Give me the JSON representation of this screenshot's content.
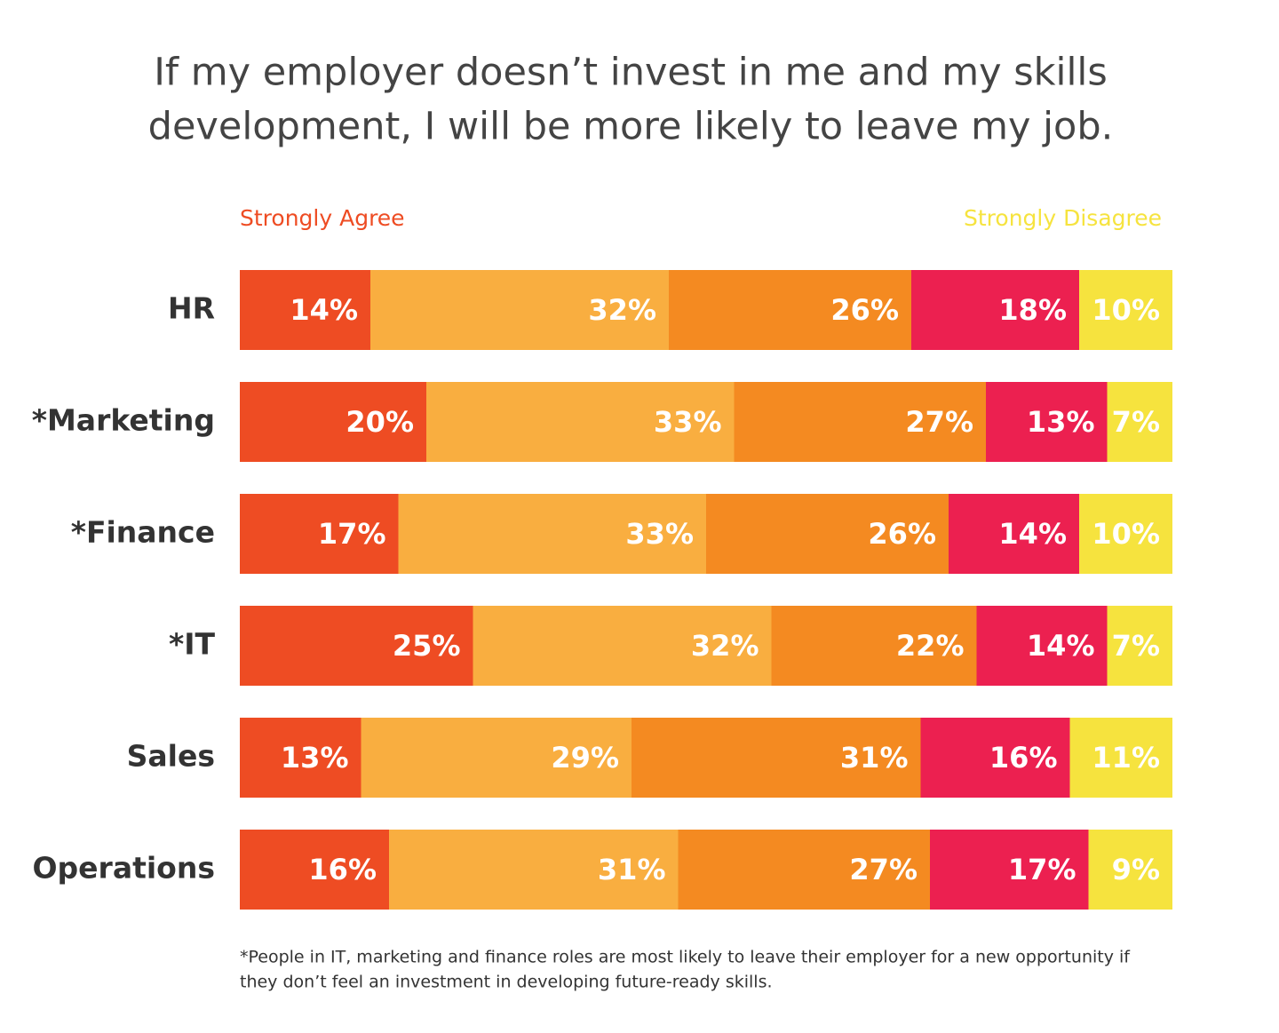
{
  "chart_data": {
    "type": "stacked-bar-horizontal",
    "title": [
      "If my employer doesn’t invest in me and my skills",
      "development, I will be more likely to leave my job."
    ],
    "categories": [
      "HR",
      "*Marketing",
      "*Finance",
      "*IT",
      "Sales",
      "Operations"
    ],
    "xlim": [
      0,
      100
    ],
    "series": [
      {
        "name": "Strongly Agree",
        "color": "#ee4c23",
        "values": [
          14,
          20,
          17,
          25,
          13,
          16
        ],
        "value_labels": [
          "14%",
          "20%",
          "17%",
          "25%",
          "13%",
          "16%"
        ]
      },
      {
        "color": "#f9ae40",
        "values": [
          32,
          33,
          33,
          32,
          29,
          31
        ],
        "value_labels": [
          "32%",
          "33%",
          "33%",
          "32%",
          "29%",
          "31%"
        ]
      },
      {
        "color": "#f48a21",
        "values": [
          26,
          27,
          26,
          22,
          31,
          27
        ],
        "value_labels": [
          "26%",
          "27%",
          "26%",
          "22%",
          "31%",
          "27%"
        ]
      },
      {
        "color": "#ec2050",
        "values": [
          18,
          13,
          14,
          14,
          16,
          17
        ],
        "value_labels": [
          "18%",
          "13%",
          "14%",
          "14%",
          "16%",
          "17%"
        ]
      },
      {
        "name": "Strongly Disagree",
        "color": "#f6e33e",
        "values": [
          10,
          7,
          10,
          7,
          11,
          9
        ],
        "value_labels": [
          "10%",
          "7%",
          "10%",
          "7%",
          "11%",
          "9%"
        ]
      }
    ],
    "note": [
      "*People in IT, marketing and finance roles are most likely to leave their employer for a new opportunity if",
      "they don’t feel an investment in developing future-ready skills."
    ]
  }
}
